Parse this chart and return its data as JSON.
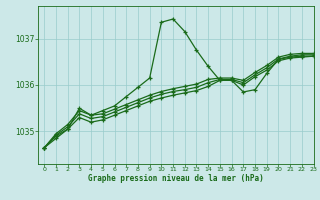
{
  "title": "Graphe pression niveau de la mer (hPa)",
  "background_color": "#cce8e8",
  "grid_color": "#99cccc",
  "line_color": "#1a6b1a",
  "xlim": [
    -0.5,
    23
  ],
  "ylim": [
    1034.3,
    1037.7
  ],
  "yticks": [
    1035,
    1036,
    1037
  ],
  "xticks": [
    0,
    1,
    2,
    3,
    4,
    5,
    6,
    7,
    8,
    9,
    10,
    11,
    12,
    13,
    14,
    15,
    16,
    17,
    18,
    19,
    20,
    21,
    22,
    23
  ],
  "series_peak": [
    1034.65,
    1034.85,
    1035.05,
    1035.5,
    1035.35,
    1035.45,
    1035.55,
    1035.75,
    1035.95,
    1036.15,
    1037.35,
    1037.42,
    1037.15,
    1036.75,
    1036.4,
    1036.1,
    1036.1,
    1035.85,
    1035.9,
    1036.25,
    1036.55,
    1036.6,
    1036.62,
    1036.62
  ],
  "series_flat1": [
    1034.65,
    1034.9,
    1035.05,
    1035.3,
    1035.2,
    1035.25,
    1035.35,
    1035.45,
    1035.55,
    1035.65,
    1035.72,
    1035.78,
    1035.83,
    1035.88,
    1035.97,
    1036.1,
    1036.1,
    1036.0,
    1036.18,
    1036.32,
    1036.52,
    1036.58,
    1036.6,
    1036.62
  ],
  "series_flat2": [
    1034.65,
    1034.92,
    1035.1,
    1035.38,
    1035.28,
    1035.32,
    1035.42,
    1035.52,
    1035.62,
    1035.72,
    1035.8,
    1035.86,
    1035.9,
    1035.95,
    1036.05,
    1036.12,
    1036.12,
    1036.05,
    1036.22,
    1036.37,
    1036.56,
    1036.62,
    1036.65,
    1036.65
  ],
  "series_flat3": [
    1034.65,
    1034.95,
    1035.15,
    1035.45,
    1035.35,
    1035.38,
    1035.48,
    1035.58,
    1035.68,
    1035.78,
    1035.86,
    1035.92,
    1035.97,
    1036.02,
    1036.12,
    1036.15,
    1036.15,
    1036.1,
    1036.27,
    1036.42,
    1036.6,
    1036.66,
    1036.68,
    1036.68
  ]
}
